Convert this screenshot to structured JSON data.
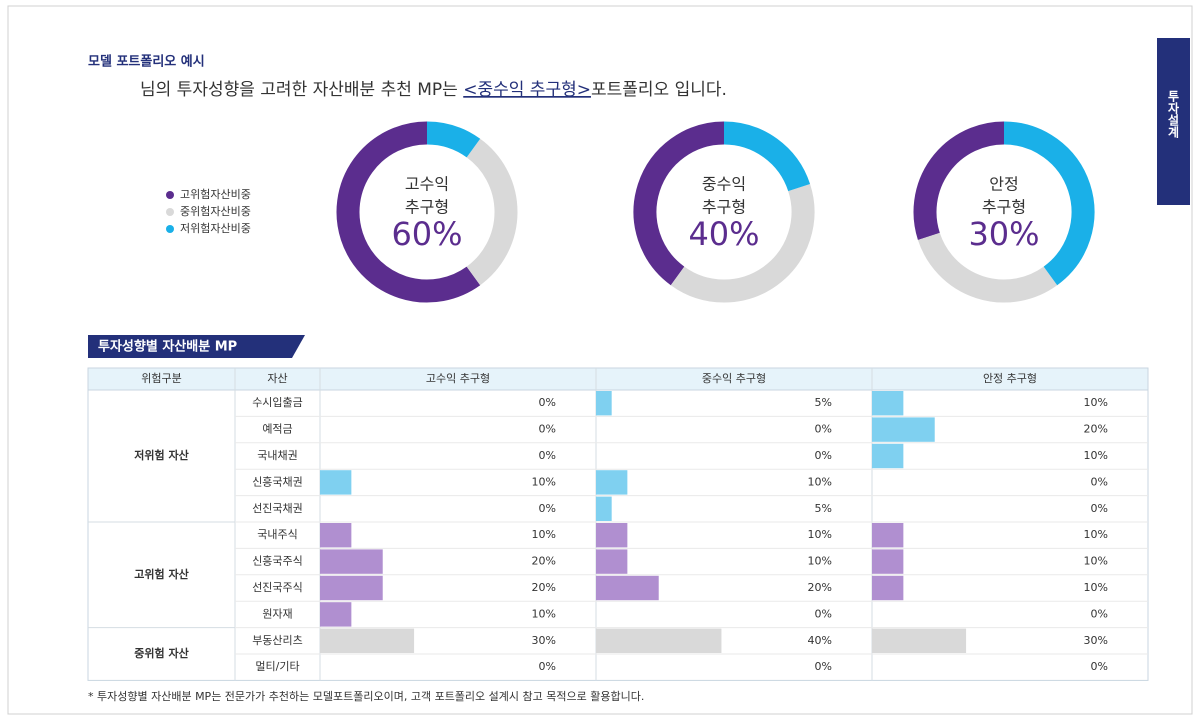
{
  "header": {
    "title": "모델 포트폴리오 예시",
    "sentence_prefix": "님의 투자성향을 고려한 자산배분 추천 MP는 ",
    "sentence_highlight": "<중수익 추구형>",
    "sentence_suffix": "포트폴리오 입니다.",
    "side_tab": "투자설계"
  },
  "legend": [
    {
      "name": "고위험자산비중",
      "color": "#5b2d8e"
    },
    {
      "name": "중위험자산비중",
      "color": "#d9d9d9"
    },
    {
      "name": "저위험자산비중",
      "color": "#1ab0e8"
    }
  ],
  "donuts": [
    {
      "label_lines": [
        "고수익",
        "추구형"
      ],
      "values": [
        60,
        30,
        10
      ],
      "center_value_label": "60%"
    },
    {
      "label_lines": [
        "중수익",
        "추구형"
      ],
      "values": [
        40,
        40,
        20
      ],
      "center_value_label": "40%"
    },
    {
      "label_lines": [
        "안정",
        "추구형"
      ],
      "values": [
        30,
        30,
        40
      ],
      "center_value_label": "30%"
    }
  ],
  "table": {
    "section_title": "투자성향별 자산배분 MP",
    "columns": [
      "위험구분",
      "자산",
      "고수익 추구형",
      "중수익 추구형",
      "안정 추구형"
    ],
    "bar_xlim": [
      0,
      88
    ],
    "groups": [
      {
        "label": "저위험 자산",
        "color": "#7fd0f0",
        "rows": [
          {
            "asset": "수시입출금",
            "values": [
              0,
              5,
              10
            ],
            "value_labels": [
              "0%",
              "5%",
              "10%"
            ]
          },
          {
            "asset": "예적금",
            "values": [
              0,
              0,
              20
            ],
            "value_labels": [
              "0%",
              "0%",
              "20%"
            ]
          },
          {
            "asset": "국내채권",
            "values": [
              0,
              0,
              10
            ],
            "value_labels": [
              "0%",
              "0%",
              "10%"
            ]
          },
          {
            "asset": "신흥국채권",
            "values": [
              10,
              10,
              0
            ],
            "value_labels": [
              "10%",
              "10%",
              "0%"
            ]
          },
          {
            "asset": "선진국채권",
            "values": [
              0,
              5,
              0
            ],
            "value_labels": [
              "0%",
              "5%",
              "0%"
            ]
          }
        ]
      },
      {
        "label": "고위험 자산",
        "color": "#b08fd0",
        "rows": [
          {
            "asset": "국내주식",
            "values": [
              10,
              10,
              10
            ],
            "value_labels": [
              "10%",
              "10%",
              "10%"
            ]
          },
          {
            "asset": "신흥국주식",
            "values": [
              20,
              10,
              10
            ],
            "value_labels": [
              "20%",
              "10%",
              "10%"
            ]
          },
          {
            "asset": "선진국주식",
            "values": [
              20,
              20,
              10
            ],
            "value_labels": [
              "20%",
              "20%",
              "10%"
            ]
          },
          {
            "asset": "원자재",
            "values": [
              10,
              0,
              0
            ],
            "value_labels": [
              "10%",
              "0%",
              "0%"
            ]
          }
        ]
      },
      {
        "label": "중위험 자산",
        "color": "#d9d9d9",
        "rows": [
          {
            "asset": "부동산리츠",
            "values": [
              30,
              40,
              30
            ],
            "value_labels": [
              "30%",
              "40%",
              "30%"
            ]
          },
          {
            "asset": "멀티/기타",
            "values": [
              0,
              0,
              0
            ],
            "value_labels": [
              "0%",
              "0%",
              "0%"
            ]
          }
        ]
      }
    ],
    "footnote": "* 투자성향별 자산배분 MP는 전문가가 추천하는 모델포트폴리오이며, 고객 포트폴리오 설계시 참고 목적으로 활용합니다."
  }
}
